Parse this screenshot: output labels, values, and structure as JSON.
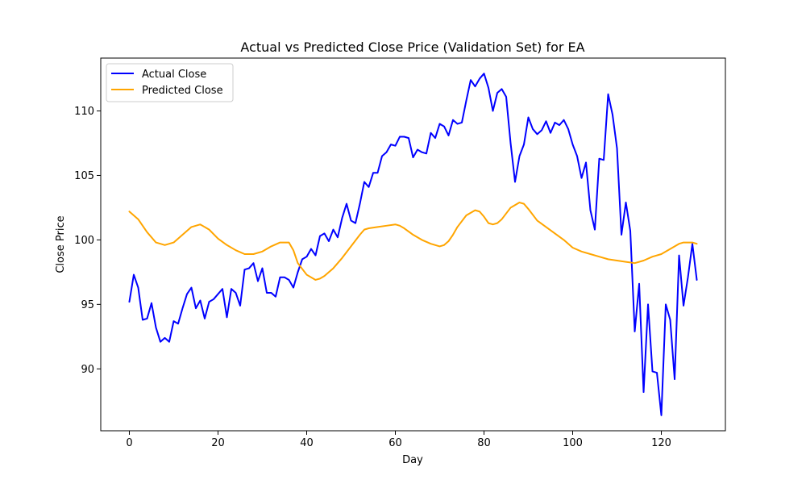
{
  "chart_data": {
    "type": "line",
    "title": "Actual vs Predicted Close Price (Validation Set) for EA",
    "xlabel": "Day",
    "ylabel": "Close Price",
    "xlim": [
      -6.45,
      134.45
    ],
    "ylim": [
      85.2,
      114.1
    ],
    "xticks": [
      0,
      20,
      40,
      60,
      80,
      100,
      120
    ],
    "yticks": [
      90,
      95,
      100,
      105,
      110
    ],
    "grid": false,
    "legend_position": "upper-left",
    "colors": {
      "actual": "#0000ff",
      "predicted": "#ffa500"
    },
    "series": [
      {
        "name": "Actual Close",
        "color": "#0000ff",
        "x": [
          0,
          1,
          2,
          3,
          4,
          5,
          6,
          7,
          8,
          9,
          10,
          11,
          12,
          13,
          14,
          15,
          16,
          17,
          18,
          19,
          20,
          21,
          22,
          23,
          24,
          25,
          26,
          27,
          28,
          29,
          30,
          31,
          32,
          33,
          34,
          35,
          36,
          37,
          38,
          39,
          40,
          41,
          42,
          43,
          44,
          45,
          46,
          47,
          48,
          49,
          50,
          51,
          52,
          53,
          54,
          55,
          56,
          57,
          58,
          59,
          60,
          61,
          62,
          63,
          64,
          65,
          66,
          67,
          68,
          69,
          70,
          71,
          72,
          73,
          74,
          75,
          76,
          77,
          78,
          79,
          80,
          81,
          82,
          83,
          84,
          85,
          86,
          87,
          88,
          89,
          90,
          91,
          92,
          93,
          94,
          95,
          96,
          97,
          98,
          99,
          100,
          101,
          102,
          103,
          104,
          105,
          106,
          107,
          108,
          109,
          110,
          111,
          112,
          113,
          114,
          115,
          116,
          117,
          118,
          119,
          120,
          121,
          122,
          123,
          124,
          125,
          126,
          127,
          128
        ],
        "values": [
          95.2,
          97.3,
          96.3,
          93.8,
          93.9,
          95.1,
          93.2,
          92.1,
          92.4,
          92.1,
          93.7,
          93.5,
          94.7,
          95.8,
          96.3,
          94.7,
          95.3,
          93.9,
          95.2,
          95.4,
          95.8,
          96.2,
          94.0,
          96.2,
          95.9,
          94.9,
          97.7,
          97.8,
          98.2,
          96.8,
          97.8,
          95.9,
          95.9,
          95.6,
          97.1,
          97.1,
          96.9,
          96.3,
          97.5,
          98.5,
          98.7,
          99.3,
          98.8,
          100.3,
          100.5,
          99.9,
          100.8,
          100.2,
          101.7,
          102.8,
          101.5,
          101.3,
          102.8,
          104.5,
          104.1,
          105.2,
          105.2,
          106.5,
          106.8,
          107.4,
          107.3,
          108.0,
          108.0,
          107.9,
          106.4,
          107.0,
          106.8,
          106.7,
          108.3,
          107.9,
          109.0,
          108.8,
          108.1,
          109.3,
          109.0,
          109.1,
          110.8,
          112.4,
          111.9,
          112.5,
          112.9,
          111.8,
          110.0,
          111.4,
          111.7,
          111.1,
          107.5,
          104.5,
          106.5,
          107.4,
          109.5,
          108.6,
          108.2,
          108.5,
          109.2,
          108.3,
          109.1,
          108.9,
          109.3,
          108.6,
          107.4,
          106.5,
          104.8,
          106.0,
          102.3,
          100.8,
          106.3,
          106.2,
          111.3,
          109.7,
          107.1,
          100.4,
          102.9,
          100.7,
          92.9,
          96.6,
          88.2,
          95.0,
          89.8,
          89.7,
          86.4,
          95.0,
          93.8,
          89.2,
          98.8,
          94.9,
          97.1,
          99.7,
          96.9
        ]
      },
      {
        "name": "Predicted Close",
        "color": "#ffa500",
        "x": [
          0,
          2,
          4,
          6,
          8,
          10,
          12,
          14,
          16,
          18,
          20,
          22,
          24,
          26,
          28,
          30,
          32,
          34,
          35,
          36,
          37,
          38,
          40,
          42,
          43,
          44,
          46,
          48,
          50,
          52,
          53,
          54,
          56,
          58,
          60,
          61,
          62,
          64,
          66,
          68,
          70,
          71,
          72,
          73,
          74,
          76,
          78,
          79,
          80,
          81,
          82,
          83,
          84,
          86,
          88,
          89,
          90,
          92,
          94,
          96,
          98,
          100,
          102,
          104,
          106,
          108,
          110,
          112,
          114,
          116,
          118,
          120,
          122,
          124,
          125,
          126,
          127,
          128
        ],
        "values": [
          102.2,
          101.6,
          100.6,
          99.8,
          99.6,
          99.8,
          100.4,
          101.0,
          101.2,
          100.8,
          100.1,
          99.6,
          99.2,
          98.9,
          98.9,
          99.1,
          99.5,
          99.8,
          99.8,
          99.8,
          99.2,
          98.2,
          97.3,
          96.9,
          97.0,
          97.2,
          97.8,
          98.6,
          99.5,
          100.4,
          100.8,
          100.9,
          101.0,
          101.1,
          101.2,
          101.1,
          100.9,
          100.4,
          100.0,
          99.7,
          99.5,
          99.6,
          99.9,
          100.4,
          101.0,
          101.9,
          102.3,
          102.2,
          101.8,
          101.3,
          101.2,
          101.3,
          101.6,
          102.5,
          102.9,
          102.8,
          102.4,
          101.5,
          101.0,
          100.5,
          100.0,
          99.4,
          99.1,
          98.9,
          98.7,
          98.5,
          98.4,
          98.3,
          98.2,
          98.4,
          98.7,
          98.9,
          99.3,
          99.7,
          99.8,
          99.8,
          99.8,
          99.7
        ]
      }
    ]
  }
}
